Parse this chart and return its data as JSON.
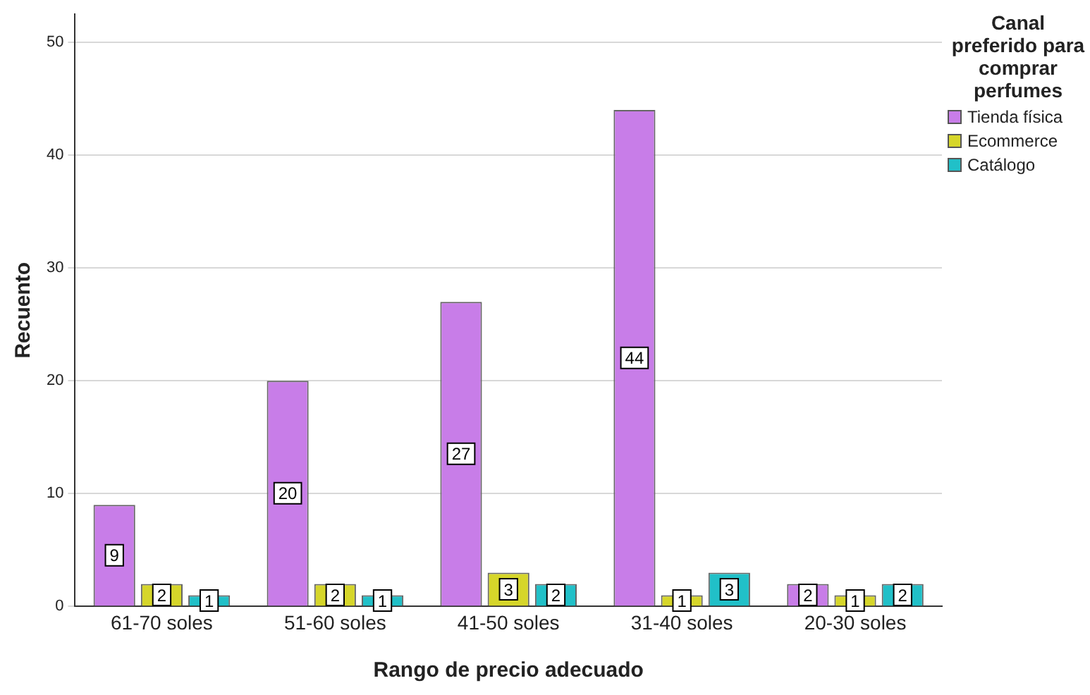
{
  "chart_data": {
    "type": "bar",
    "xlabel": "Rango de precio adecuado",
    "ylabel": "Recuento",
    "legend_title": "Canal preferido para comprar perfumes",
    "categories": [
      "61-70 soles",
      "51-60 soles",
      "41-50 soles",
      "31-40 soles",
      "20-30 soles"
    ],
    "series": [
      {
        "name": "Tienda física",
        "color": "#c87de8",
        "values": [
          9,
          20,
          27,
          44,
          2
        ]
      },
      {
        "name": "Ecommerce",
        "color": "#d6d62a",
        "values": [
          2,
          2,
          3,
          1,
          1
        ]
      },
      {
        "name": "Catálogo",
        "color": "#21c0c8",
        "values": [
          1,
          1,
          2,
          3,
          2
        ]
      }
    ],
    "ylim": [
      0,
      52.5
    ],
    "yticks": [
      0,
      10,
      20,
      30,
      40,
      50
    ],
    "grid": "y",
    "legend": "right",
    "data_labels": true
  }
}
